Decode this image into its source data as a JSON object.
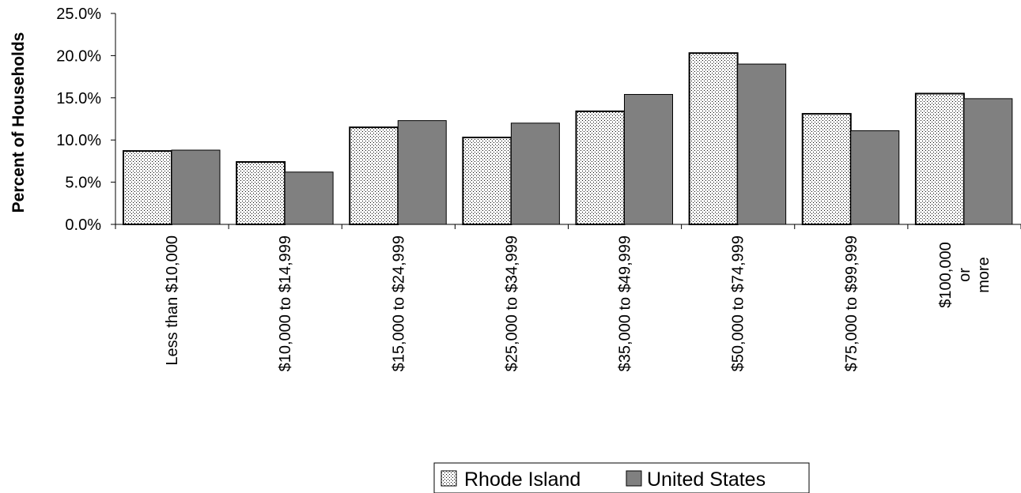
{
  "chart_data": {
    "type": "bar",
    "title": "",
    "ylabel": "Percent of Households",
    "xlabel": "",
    "ylim": [
      0,
      25
    ],
    "yticks": [
      "0.0%",
      "5.0%",
      "10.0%",
      "15.0%",
      "20.0%",
      "25.0%"
    ],
    "ytick_values": [
      0,
      5,
      10,
      15,
      20,
      25
    ],
    "categories": [
      [
        "Less than $10,000"
      ],
      [
        "$10,000 to $14,999"
      ],
      [
        "$15,000 to $24,999"
      ],
      [
        "$25,000 to $34,999"
      ],
      [
        "$35,000 to $49,999"
      ],
      [
        "$50,000 to $74,999"
      ],
      [
        "$75,000 to $99,999"
      ],
      [
        "$100,000",
        "or",
        "more"
      ]
    ],
    "series": [
      {
        "name": "Rhode Island",
        "values": [
          8.7,
          7.4,
          11.5,
          10.3,
          13.4,
          20.3,
          13.1,
          15.5
        ],
        "fill": "pattern-dots"
      },
      {
        "name": "United States",
        "values": [
          8.8,
          6.2,
          12.3,
          12.0,
          15.4,
          19.0,
          11.1,
          14.9
        ],
        "fill": "#808080"
      }
    ],
    "grid": false,
    "legend": "bottom-center"
  }
}
